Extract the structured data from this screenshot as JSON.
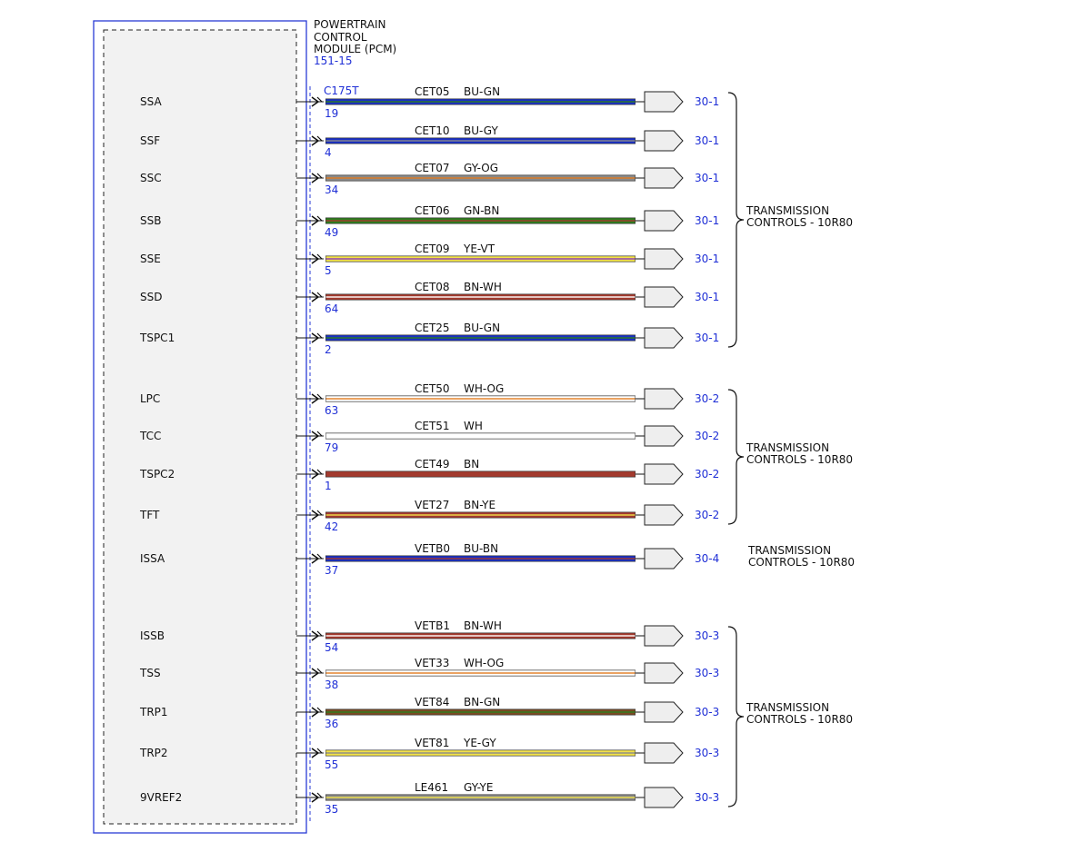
{
  "module": {
    "title_lines": [
      "POWERTRAIN",
      "CONTROL",
      "MODULE (PCM)"
    ],
    "ref": "151-15",
    "connector": "C175T"
  },
  "colors": {
    "frame": "#2a3bd6",
    "module_fill": "#f2f2f2",
    "ref_text": "#1f2fd6",
    "wire_BU": "#1a2fc4",
    "wire_GY": "#8a8a8a",
    "wire_GN": "#2e7d1e",
    "wire_YE": "#f2e24a",
    "wire_BN": "#a33a2e",
    "wire_BN_dark": "#7a4a22",
    "wire_WH": "#ffffff",
    "wire_OG": "#e07a20"
  },
  "wires": [
    {
      "signal": "SSA",
      "pin": "19",
      "circuit": "CET05",
      "color_code": "BU-GN",
      "dest": "30-1",
      "base": "BU",
      "stripe": "GN"
    },
    {
      "signal": "SSF",
      "pin": "4",
      "circuit": "CET10",
      "color_code": "BU-GY",
      "dest": "30-1",
      "base": "BU",
      "stripe": "GY"
    },
    {
      "signal": "SSC",
      "pin": "34",
      "circuit": "CET07",
      "color_code": "GY-OG",
      "dest": "30-1",
      "base": "GY",
      "stripe": "OG"
    },
    {
      "signal": "SSB",
      "pin": "49",
      "circuit": "CET06",
      "color_code": "GN-BN",
      "dest": "30-1",
      "base": "GN",
      "stripe": "BN"
    },
    {
      "signal": "SSE",
      "pin": "5",
      "circuit": "CET09",
      "color_code": "YE-VT",
      "dest": "30-1",
      "base": "YE",
      "stripe": "VT"
    },
    {
      "signal": "SSD",
      "pin": "64",
      "circuit": "CET08",
      "color_code": "BN-WH",
      "dest": "30-1",
      "base": "BN",
      "stripe": "WH"
    },
    {
      "signal": "TSPC1",
      "pin": "2",
      "circuit": "CET25",
      "color_code": "BU-GN",
      "dest": "30-1",
      "base": "BU",
      "stripe": "GN"
    },
    {
      "signal": "LPC",
      "pin": "63",
      "circuit": "CET50",
      "color_code": "WH-OG",
      "dest": "30-2",
      "base": "WH",
      "stripe": "OG"
    },
    {
      "signal": "TCC",
      "pin": "79",
      "circuit": "CET51",
      "color_code": "WH",
      "dest": "30-2",
      "base": "WH",
      "stripe": ""
    },
    {
      "signal": "TSPC2",
      "pin": "1",
      "circuit": "CET49",
      "color_code": "BN",
      "dest": "30-2",
      "base": "BN",
      "stripe": ""
    },
    {
      "signal": "TFT",
      "pin": "42",
      "circuit": "VET27",
      "color_code": "BN-YE",
      "dest": "30-2",
      "base": "BN",
      "stripe": "YE"
    },
    {
      "signal": "ISSA",
      "pin": "37",
      "circuit": "VETB0",
      "color_code": "BU-BN",
      "dest": "30-4",
      "base": "BU",
      "stripe": "BN"
    },
    {
      "signal": "ISSB",
      "pin": "54",
      "circuit": "VETB1",
      "color_code": "BN-WH",
      "dest": "30-3",
      "base": "BN",
      "stripe": "WH"
    },
    {
      "signal": "TSS",
      "pin": "38",
      "circuit": "VET33",
      "color_code": "WH-OG",
      "dest": "30-3",
      "base": "WH",
      "stripe": "OG"
    },
    {
      "signal": "TRP1",
      "pin": "36",
      "circuit": "VET84",
      "color_code": "BN-GN",
      "dest": "30-3",
      "base": "BN_dark",
      "stripe": "GN"
    },
    {
      "signal": "TRP2",
      "pin": "55",
      "circuit": "VET81",
      "color_code": "YE-GY",
      "dest": "30-3",
      "base": "YE",
      "stripe": "GY"
    },
    {
      "signal": "9VREF2",
      "pin": "35",
      "circuit": "LE461",
      "color_code": "GY-YE",
      "dest": "30-3",
      "base": "GY",
      "stripe": "YE"
    }
  ],
  "groups": [
    {
      "lines": [
        "TRANSMISSION",
        "CONTROLS - 10R80"
      ],
      "brace": true
    },
    {
      "lines": [
        "TRANSMISSION",
        "CONTROLS - 10R80"
      ],
      "brace": true
    },
    {
      "lines": [
        "TRANSMISSION",
        "CONTROLS - 10R80"
      ],
      "brace": false
    },
    {
      "lines": [
        "TRANSMISSION",
        "CONTROLS - 10R80"
      ],
      "brace": true
    }
  ]
}
